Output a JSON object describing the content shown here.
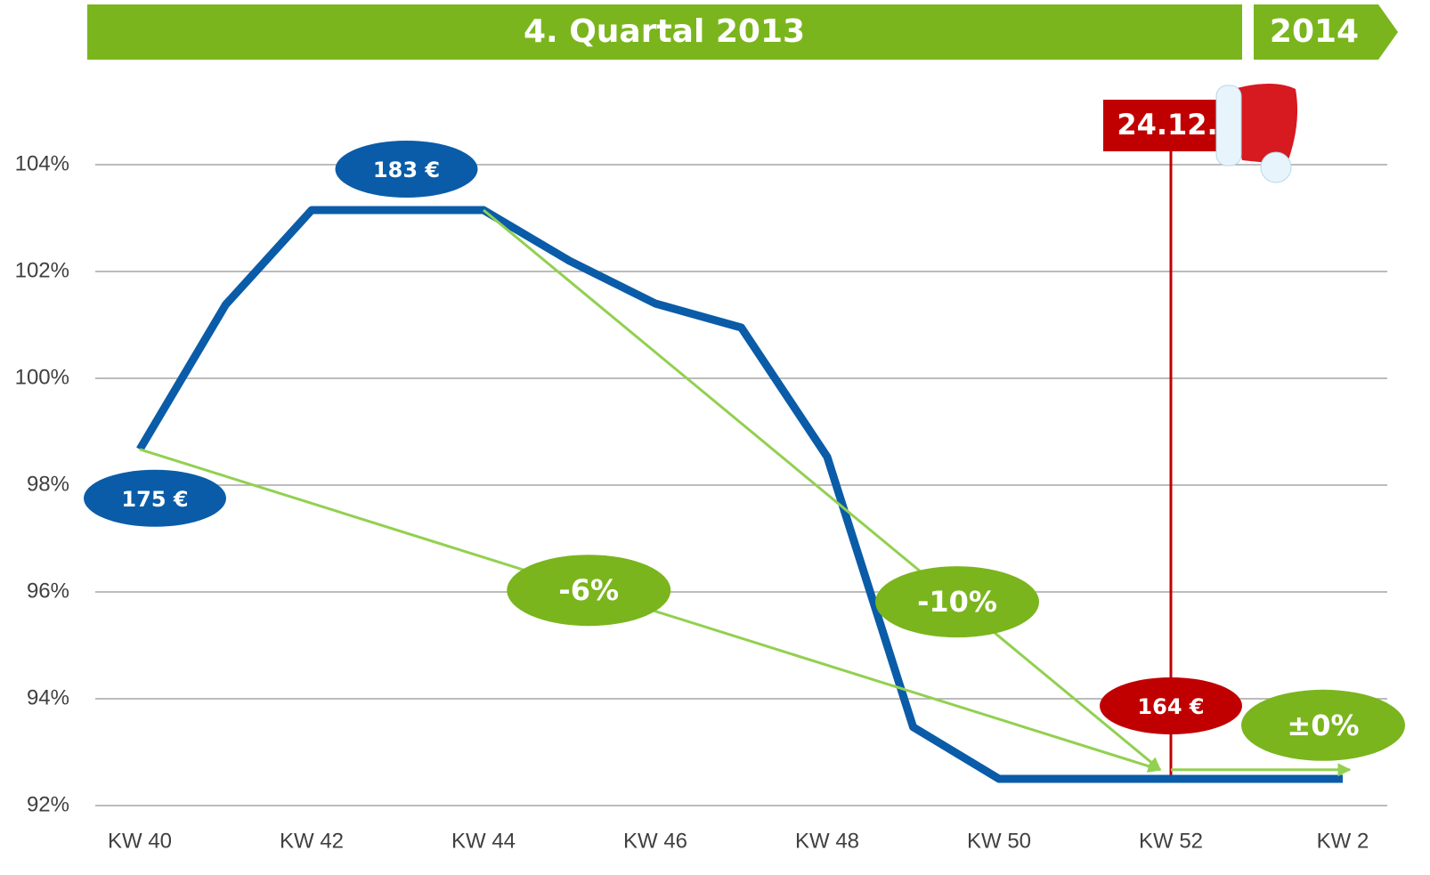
{
  "chart_data": {
    "type": "line",
    "header": {
      "title": "4. Quartal 2013",
      "next": "2014",
      "color": "#7ab51d"
    },
    "categories": [
      "KW 40",
      null,
      "KW 42",
      null,
      "KW 44",
      null,
      "KW 46",
      null,
      "KW 48",
      null,
      "KW 50",
      null,
      "KW 52",
      null,
      "KW 2"
    ],
    "series": [
      {
        "color": "#0a5ca8",
        "values": [
          98.67,
          101.38,
          103.15,
          103.15,
          103.15,
          102.2,
          101.4,
          100.95,
          98.53,
          93.47,
          92.5,
          92.5,
          92.5,
          92.5,
          92.5
        ],
        "value_labels": [
          "175 €",
          null,
          null,
          "183 €",
          null,
          null,
          null,
          null,
          null,
          null,
          null,
          null,
          "164 €",
          null,
          null
        ]
      }
    ],
    "ylim": [
      92,
      104
    ],
    "yticks": [
      {
        "value": 92,
        "label": "92%"
      },
      {
        "value": 94,
        "label": "94%"
      },
      {
        "value": 96,
        "label": "96%"
      },
      {
        "value": 98,
        "label": "98%"
      },
      {
        "value": 100,
        "label": "100%"
      },
      {
        "value": 102,
        "label": "102%"
      },
      {
        "value": 104,
        "label": "104%"
      }
    ],
    "grid": true,
    "trends": [
      {
        "label": "-6%",
        "from": "KW 40",
        "to": "KW 52",
        "start": 98.67,
        "end": 92.67
      },
      {
        "label": "-10%",
        "from": "KW 44",
        "to": "KW 52",
        "start": 103.15,
        "end": 92.67
      },
      {
        "label": "±0%",
        "from": "KW 52",
        "to": "KW 2",
        "start": 92.67,
        "end": 92.67
      }
    ],
    "trend_color": "#92d050",
    "trend_label_color": "#7ab51d",
    "marker": {
      "label": "24.12.",
      "at": "KW 52",
      "color": "#c00000"
    }
  }
}
